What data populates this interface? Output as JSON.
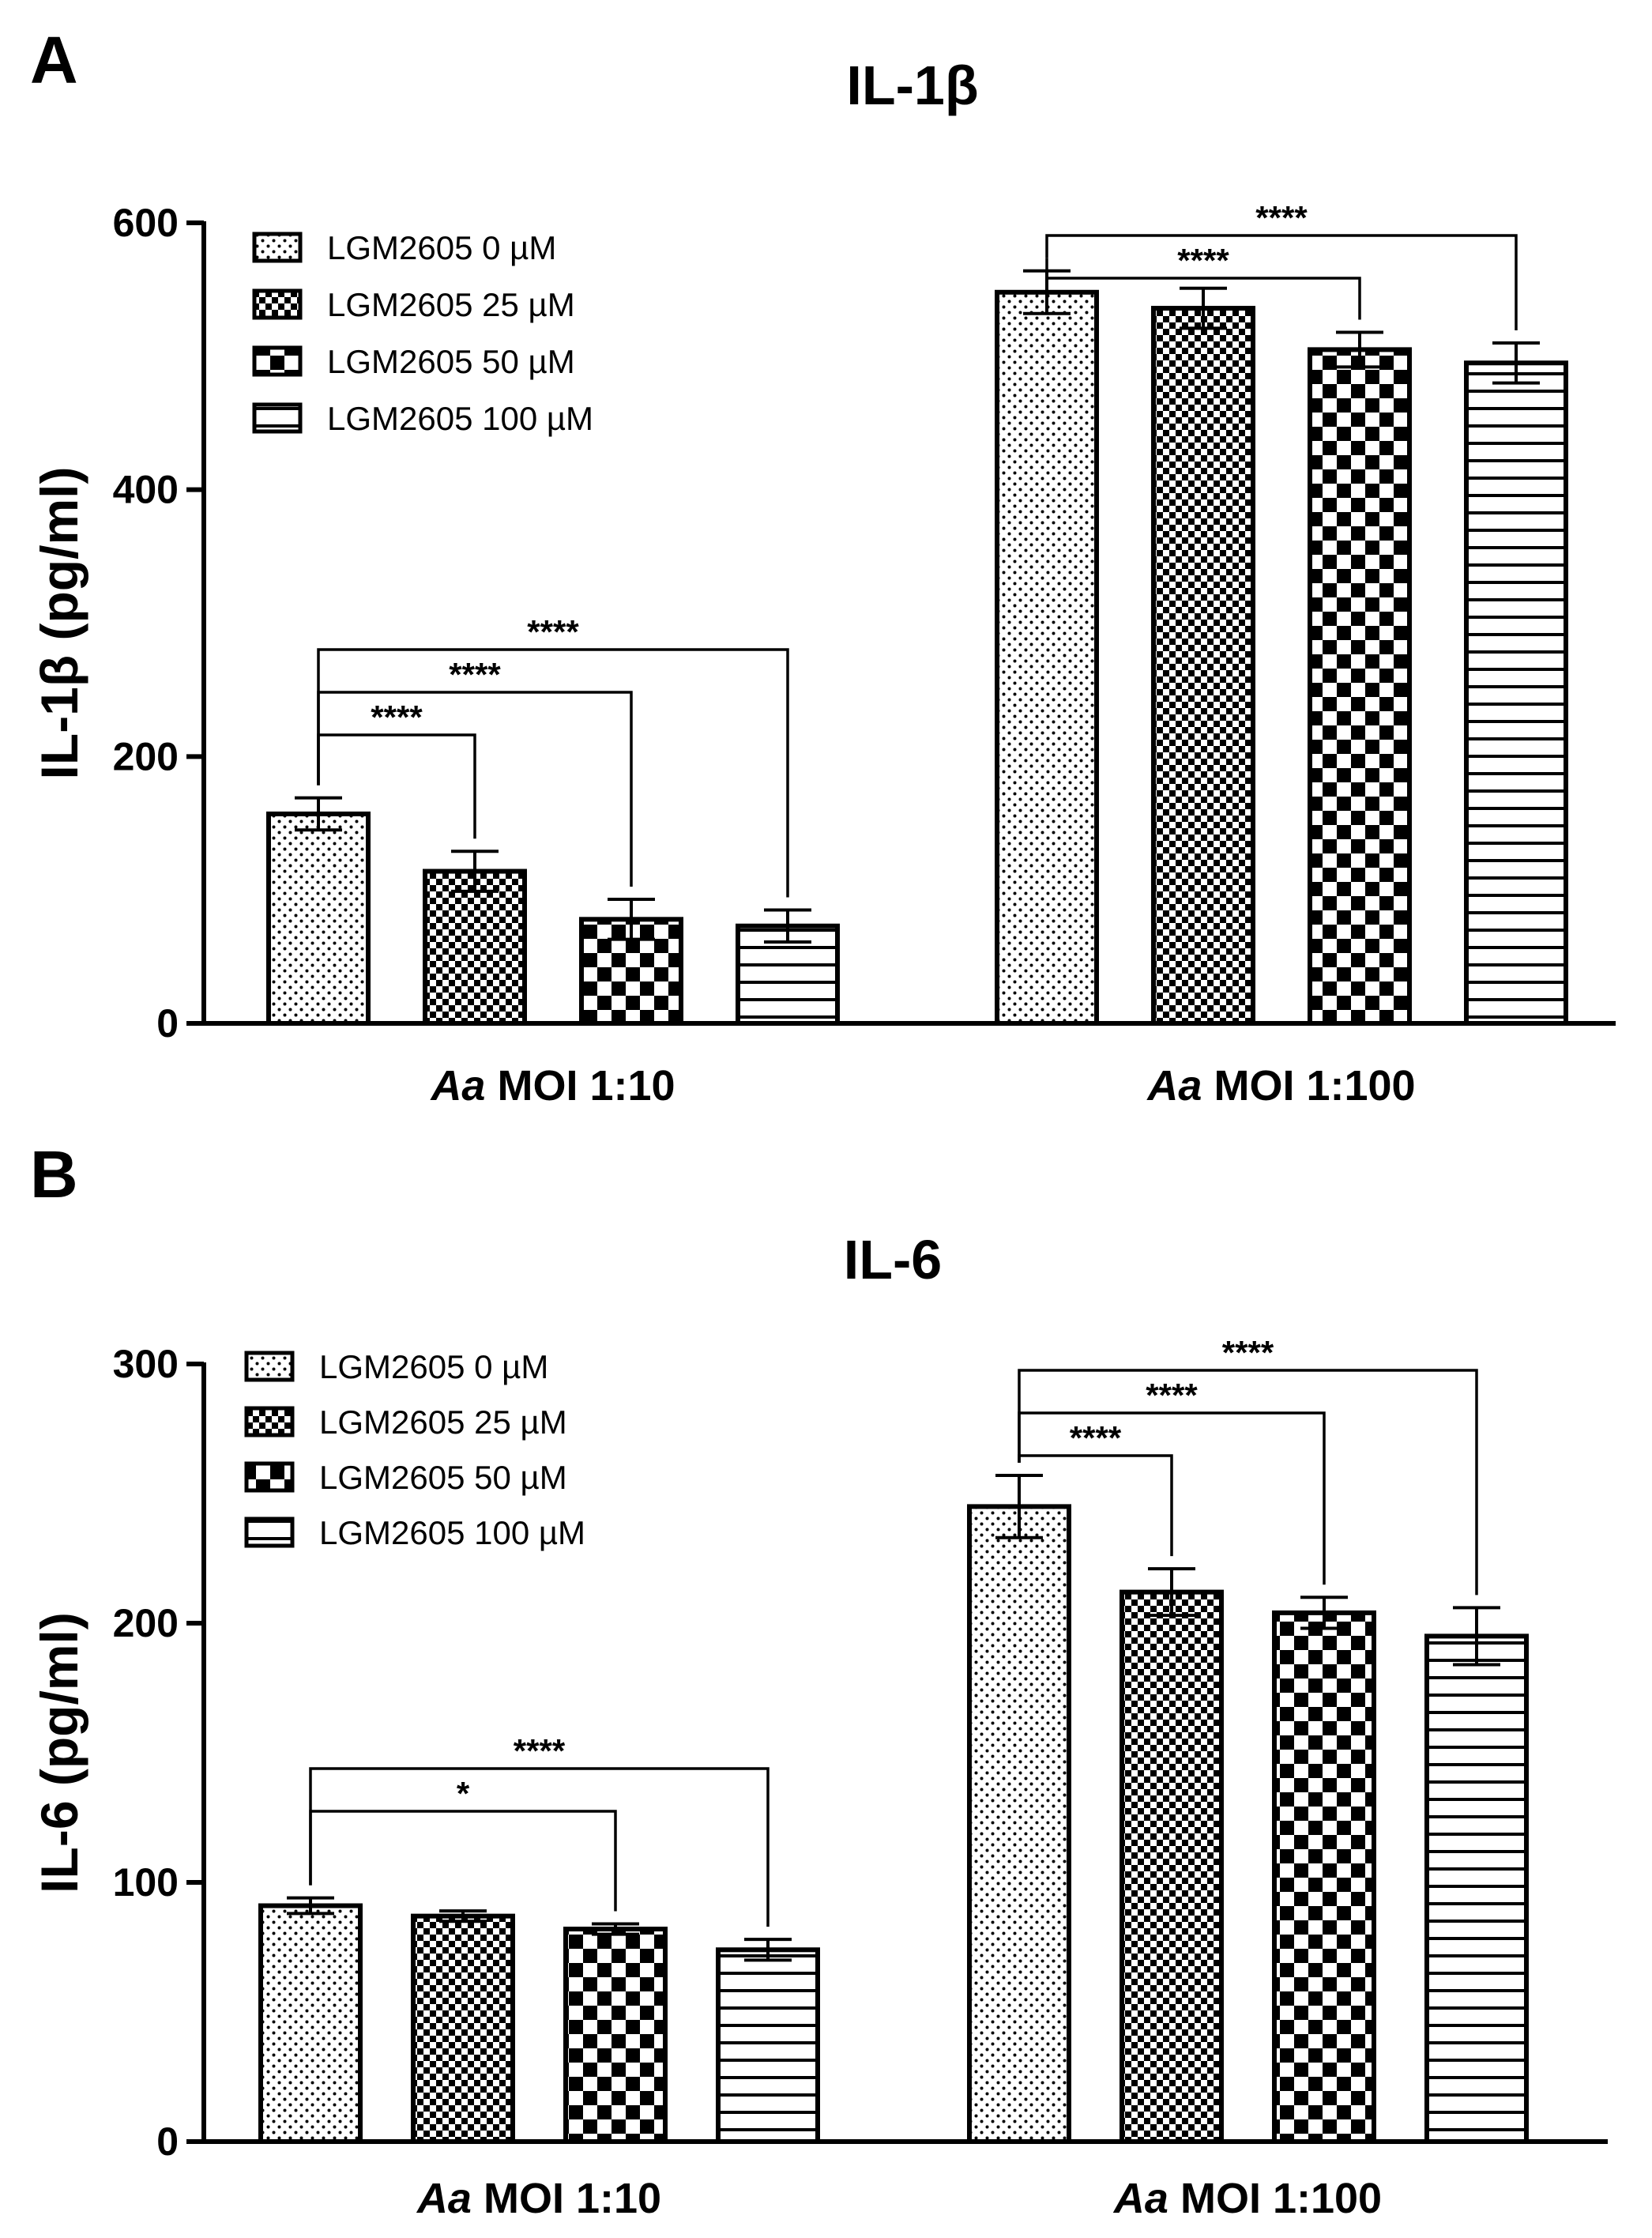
{
  "chart_data": [
    {
      "type": "bar",
      "panel": "A",
      "title": "IL-1β",
      "xlabel": "",
      "ylabel": "IL-1β (pg/ml)",
      "ylim": [
        0,
        600
      ],
      "yticks": [
        0,
        200,
        400,
        600
      ],
      "groups": [
        {
          "prefix": "Aa",
          "suffix": " MOI 1:10"
        },
        {
          "prefix": "Aa",
          "suffix": " MOI 1:100"
        }
      ],
      "series": [
        {
          "name": "LGM2605 0 µM",
          "pattern": "dots",
          "values": [
            157,
            548
          ],
          "errors": [
            12,
            16
          ]
        },
        {
          "name": "LGM2605 25 µM",
          "pattern": "finecheck",
          "values": [
            114,
            536
          ],
          "errors": [
            15,
            15
          ]
        },
        {
          "name": "LGM2605 50 µM",
          "pattern": "check",
          "values": [
            78,
            505
          ],
          "errors": [
            15,
            13
          ]
        },
        {
          "name": "LGM2605 100 µM",
          "pattern": "hlines",
          "values": [
            73,
            495
          ],
          "errors": [
            12,
            15
          ]
        }
      ],
      "significance": [
        {
          "group": 0,
          "from": 0,
          "to": 1,
          "label": "****"
        },
        {
          "group": 0,
          "from": 0,
          "to": 2,
          "label": "****"
        },
        {
          "group": 0,
          "from": 0,
          "to": 3,
          "label": "****"
        },
        {
          "group": 1,
          "from": 0,
          "to": 2,
          "label": "****"
        },
        {
          "group": 1,
          "from": 0,
          "to": 3,
          "label": "****"
        }
      ],
      "legend_position": "top-left"
    },
    {
      "type": "bar",
      "panel": "B",
      "title": "IL-6",
      "xlabel": "",
      "ylabel": "IL-6 (pg/ml)",
      "ylim": [
        0,
        300
      ],
      "yticks": [
        0,
        100,
        200,
        300
      ],
      "groups": [
        {
          "prefix": "Aa",
          "suffix": " MOI 1:10"
        },
        {
          "prefix": "Aa",
          "suffix": " MOI 1:100"
        }
      ],
      "series": [
        {
          "name": "LGM2605 0 µM",
          "pattern": "dots",
          "values": [
            91,
            245
          ],
          "errors": [
            3,
            12
          ]
        },
        {
          "name": "LGM2605 25 µM",
          "pattern": "finecheck",
          "values": [
            87,
            212
          ],
          "errors": [
            2,
            9
          ]
        },
        {
          "name": "LGM2605 50 µM",
          "pattern": "check",
          "values": [
            82,
            204
          ],
          "errors": [
            2,
            6
          ]
        },
        {
          "name": "LGM2605 100 µM",
          "pattern": "hlines",
          "values": [
            74,
            195
          ],
          "errors": [
            4,
            11
          ]
        }
      ],
      "significance": [
        {
          "group": 0,
          "from": 0,
          "to": 2,
          "label": "*"
        },
        {
          "group": 0,
          "from": 0,
          "to": 3,
          "label": "****"
        },
        {
          "group": 1,
          "from": 0,
          "to": 1,
          "label": "****"
        },
        {
          "group": 1,
          "from": 0,
          "to": 2,
          "label": "****"
        },
        {
          "group": 1,
          "from": 0,
          "to": 3,
          "label": "****"
        }
      ],
      "legend_position": "top-left"
    }
  ]
}
